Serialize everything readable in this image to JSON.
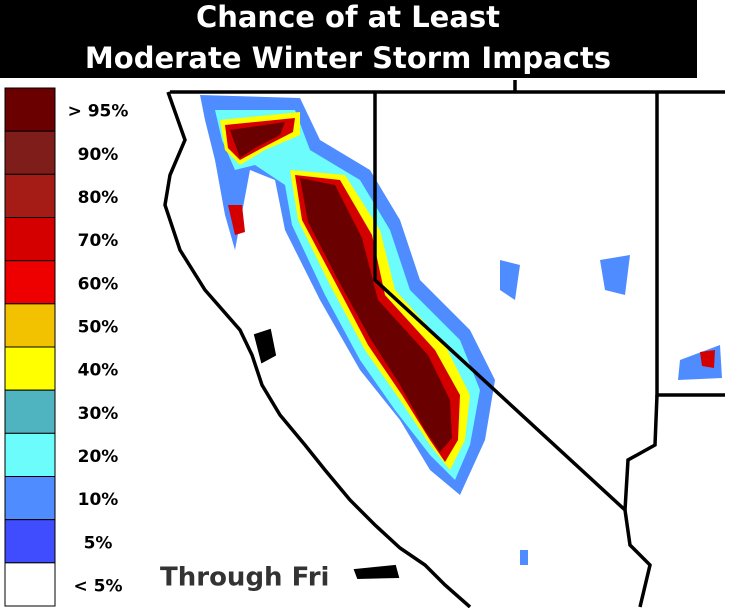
{
  "header": {
    "title_lines": [
      "Chance of at Least",
      "Moderate Winter Storm Impacts"
    ]
  },
  "legend": [
    {
      "label": "> 95%",
      "color": "#6b0000"
    },
    {
      "label": "90%",
      "color": "#7f1d1a"
    },
    {
      "label": "80%",
      "color": "#a51c17"
    },
    {
      "label": "70%",
      "color": "#d40000"
    },
    {
      "label": "60%",
      "color": "#ee0000"
    },
    {
      "label": "50%",
      "color": "#f2c200"
    },
    {
      "label": "40%",
      "color": "#ffff00"
    },
    {
      "label": "30%",
      "color": "#4fb4bf"
    },
    {
      "label": "20%",
      "color": "#6cfcfc"
    },
    {
      "label": "10%",
      "color": "#4f8cff"
    },
    {
      "label": "5%",
      "color": "#3f4dff"
    },
    {
      "label": "< 5%",
      "color": "#ffffff"
    }
  ],
  "map": {
    "period_label": "Through Fri"
  }
}
